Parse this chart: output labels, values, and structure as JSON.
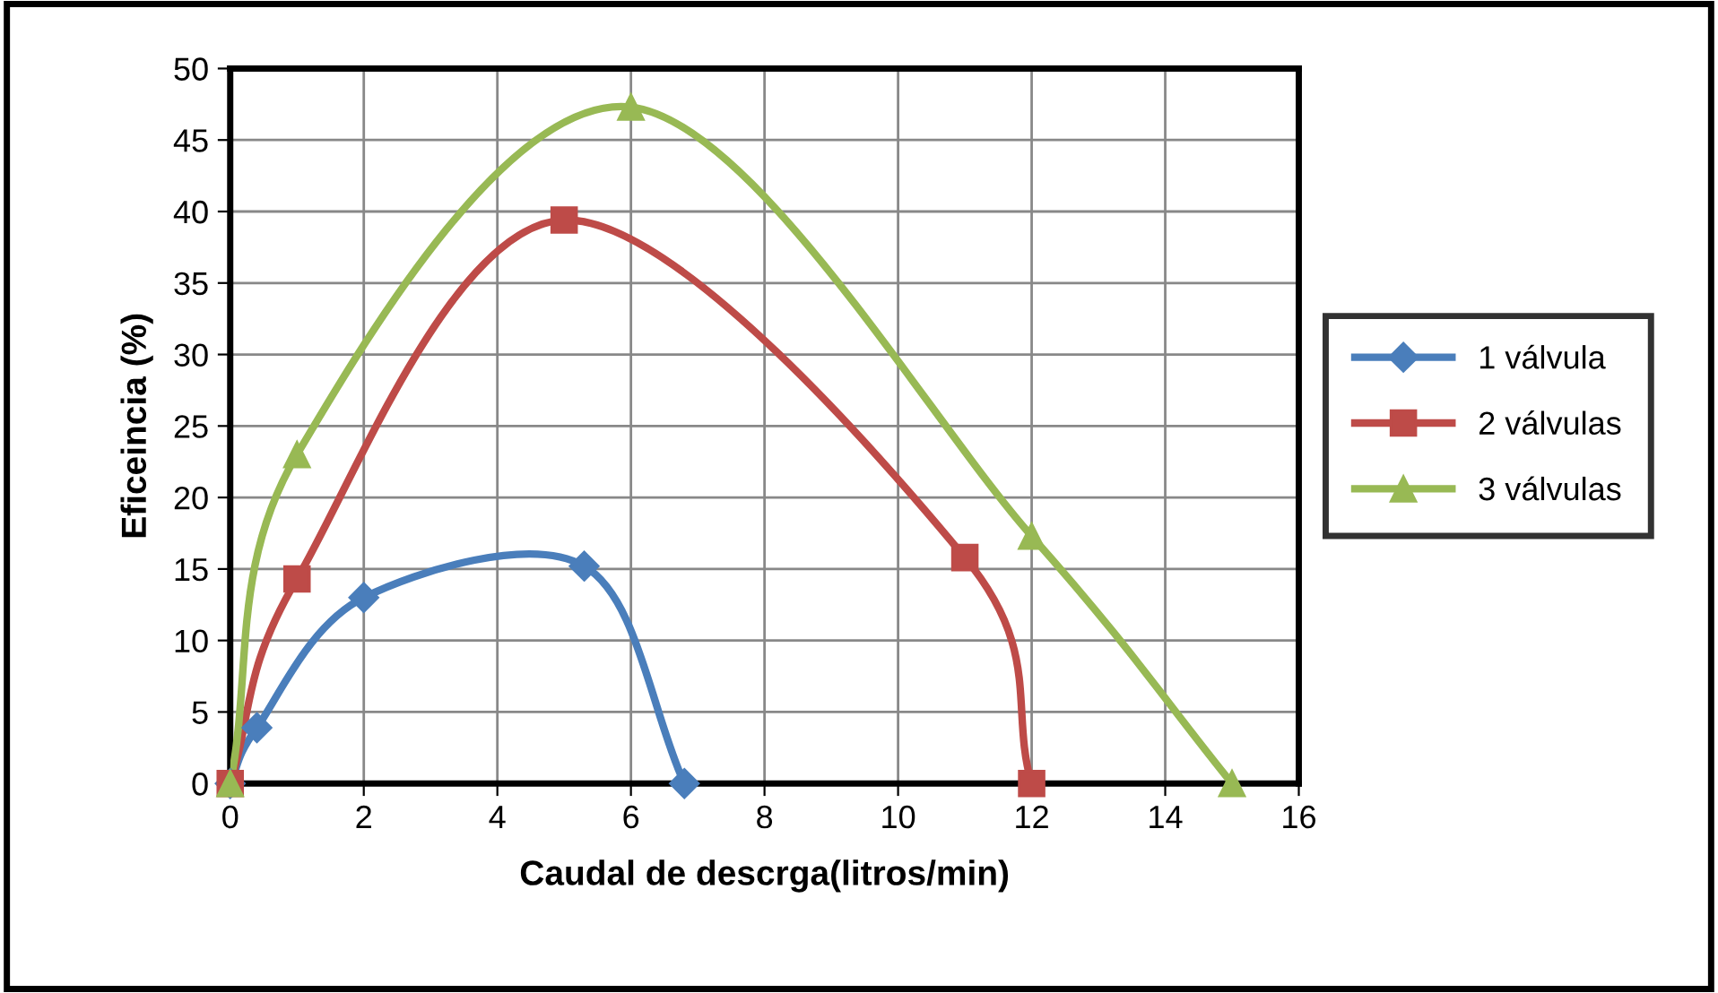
{
  "chart_data": {
    "type": "line",
    "xlabel": "Caudal de descrga(litros/min)",
    "ylabel": "Eficeincia (%)",
    "xlim": [
      0,
      16
    ],
    "xticks": [
      0,
      2,
      4,
      6,
      8,
      10,
      12,
      14,
      16
    ],
    "ylim": [
      0,
      50
    ],
    "yticks": [
      0,
      5,
      10,
      15,
      20,
      25,
      30,
      35,
      40,
      45,
      50
    ],
    "grid": true,
    "legend": "right",
    "line_style": "solid",
    "series": [
      {
        "name": "1 válvula",
        "color": "#4a7ebb",
        "marker": "diamond",
        "x": [
          0,
          0.4,
          2,
          5.3,
          6.8
        ],
        "values": [
          0,
          3.9,
          13,
          15.2,
          0
        ]
      },
      {
        "name": "2 válvulas",
        "color": "#be4b48",
        "marker": "square",
        "x": [
          0,
          1,
          5,
          11,
          12
        ],
        "values": [
          0,
          14.3,
          39.4,
          15.8,
          0
        ]
      },
      {
        "name": "3 válvulas",
        "color": "#98b954",
        "marker": "triangle",
        "x": [
          0,
          1,
          6,
          12,
          15
        ],
        "values": [
          0,
          23,
          47.3,
          17.3,
          0
        ]
      }
    ]
  }
}
